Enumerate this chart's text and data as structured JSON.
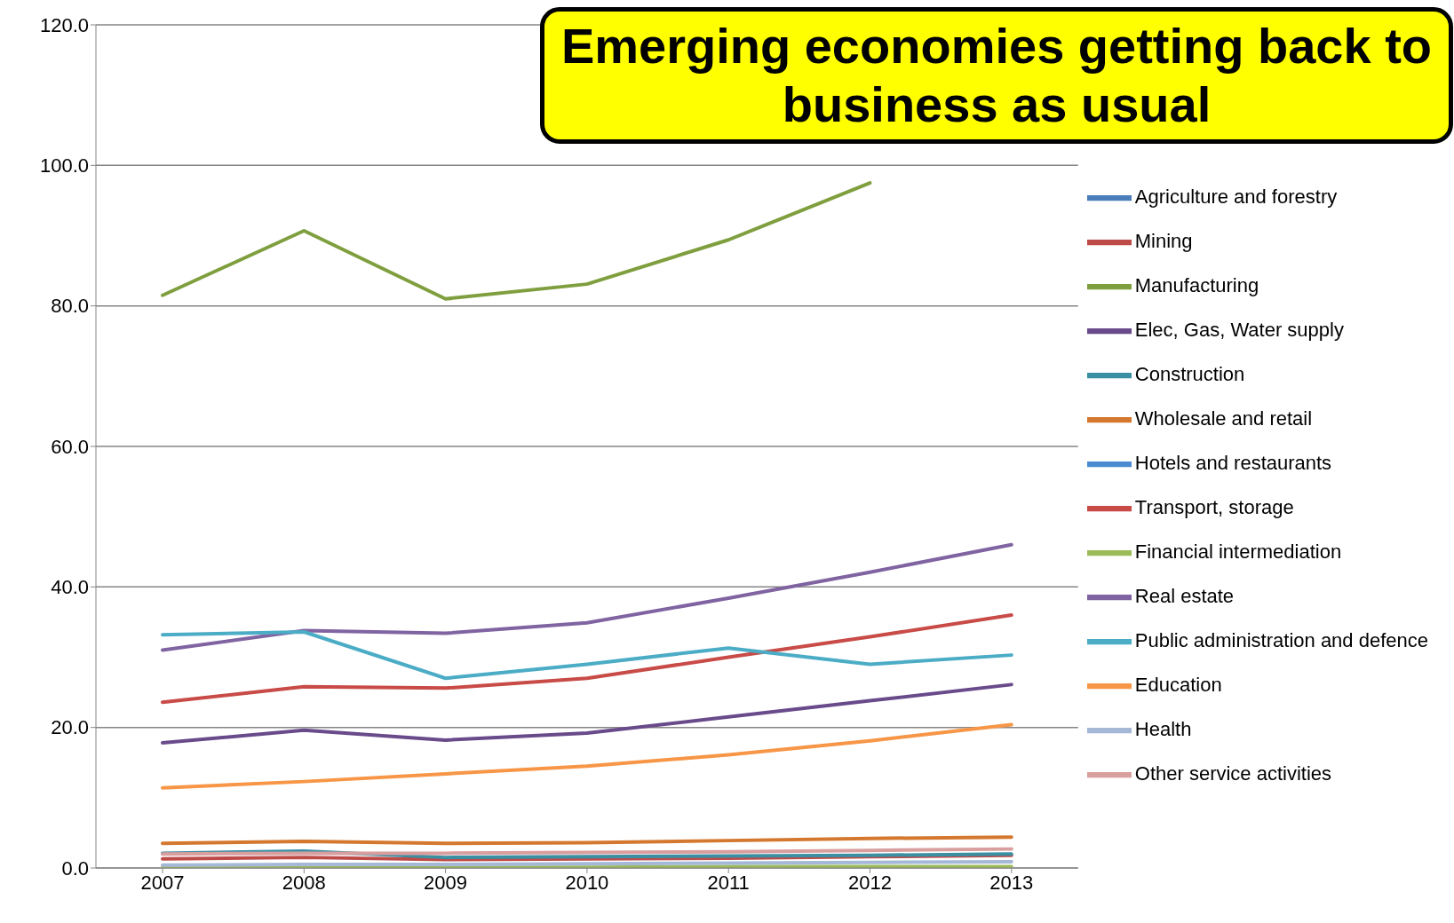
{
  "chart_data": {
    "type": "line",
    "title": "Emerging economies getting back to business as usual",
    "categories": [
      "2007",
      "2008",
      "2009",
      "2010",
      "2011",
      "2012",
      "2013"
    ],
    "ylim": [
      0,
      120
    ],
    "yticks": [
      {
        "value": 0,
        "label": "0.0"
      },
      {
        "value": 20,
        "label": "20.0"
      },
      {
        "value": 40,
        "label": "40.0"
      },
      {
        "value": 60,
        "label": "60.0"
      },
      {
        "value": 80,
        "label": "80.0"
      },
      {
        "value": 100,
        "label": "100.0"
      },
      {
        "value": 120,
        "label": "120.0"
      }
    ],
    "grid": "y",
    "legend": "right",
    "marker": "none",
    "line_style": "solid",
    "series": [
      {
        "name": "Agriculture and forestry",
        "color": "#4a7ebb",
        "values": [
          null,
          null,
          null,
          null,
          null,
          null,
          null
        ]
      },
      {
        "name": "Mining",
        "color": "#be4b48",
        "values": [
          1.3,
          1.5,
          1.2,
          1.3,
          1.4,
          1.6,
          1.8
        ]
      },
      {
        "name": "Manufacturing",
        "color": "#7f9f3f",
        "values": [
          81.5,
          90.7,
          81.0,
          83.1,
          89.4,
          97.5,
          null
        ]
      },
      {
        "name": "Elec, Gas, Water supply",
        "color": "#694a8a",
        "values": [
          17.8,
          19.6,
          18.2,
          19.2,
          21.5,
          23.8,
          26.1
        ]
      },
      {
        "name": "Construction",
        "color": "#3a8fa3",
        "values": [
          2.1,
          2.4,
          1.5,
          1.6,
          1.7,
          1.8,
          2.0
        ]
      },
      {
        "name": "Wholesale and retail",
        "color": "#d5782f",
        "values": [
          3.5,
          3.8,
          3.5,
          3.6,
          3.9,
          4.2,
          4.4
        ]
      },
      {
        "name": "Hotels and restaurants",
        "color": "#4a8ad0",
        "values": [
          null,
          null,
          null,
          null,
          null,
          null,
          null
        ]
      },
      {
        "name": "Transport, storage",
        "color": "#c84b47",
        "values": [
          23.6,
          25.8,
          25.6,
          27.0,
          30.0,
          32.9,
          36.0
        ]
      },
      {
        "name": "Financial intermediation",
        "color": "#9bbb59",
        "values": [
          0.1,
          0.1,
          0.1,
          0.1,
          0.2,
          0.2,
          0.2
        ]
      },
      {
        "name": "Real estate",
        "color": "#8064a2",
        "values": [
          31.0,
          33.8,
          33.4,
          34.9,
          38.4,
          42.1,
          46.0
        ]
      },
      {
        "name": "Public administration and defence",
        "color": "#4bacc6",
        "values": [
          33.2,
          33.6,
          27.0,
          29.0,
          31.3,
          29.0,
          30.3
        ]
      },
      {
        "name": "Education",
        "color": "#f79646",
        "values": [
          11.4,
          12.3,
          13.4,
          14.5,
          16.1,
          18.1,
          20.4
        ]
      },
      {
        "name": "Health",
        "color": "#a5b8d8",
        "values": [
          0.4,
          0.5,
          0.5,
          0.6,
          0.7,
          0.8,
          0.9
        ]
      },
      {
        "name": "Other service activities",
        "color": "#d99e9e",
        "values": [
          2.0,
          2.1,
          2.1,
          2.2,
          2.3,
          2.5,
          2.7
        ]
      }
    ]
  }
}
